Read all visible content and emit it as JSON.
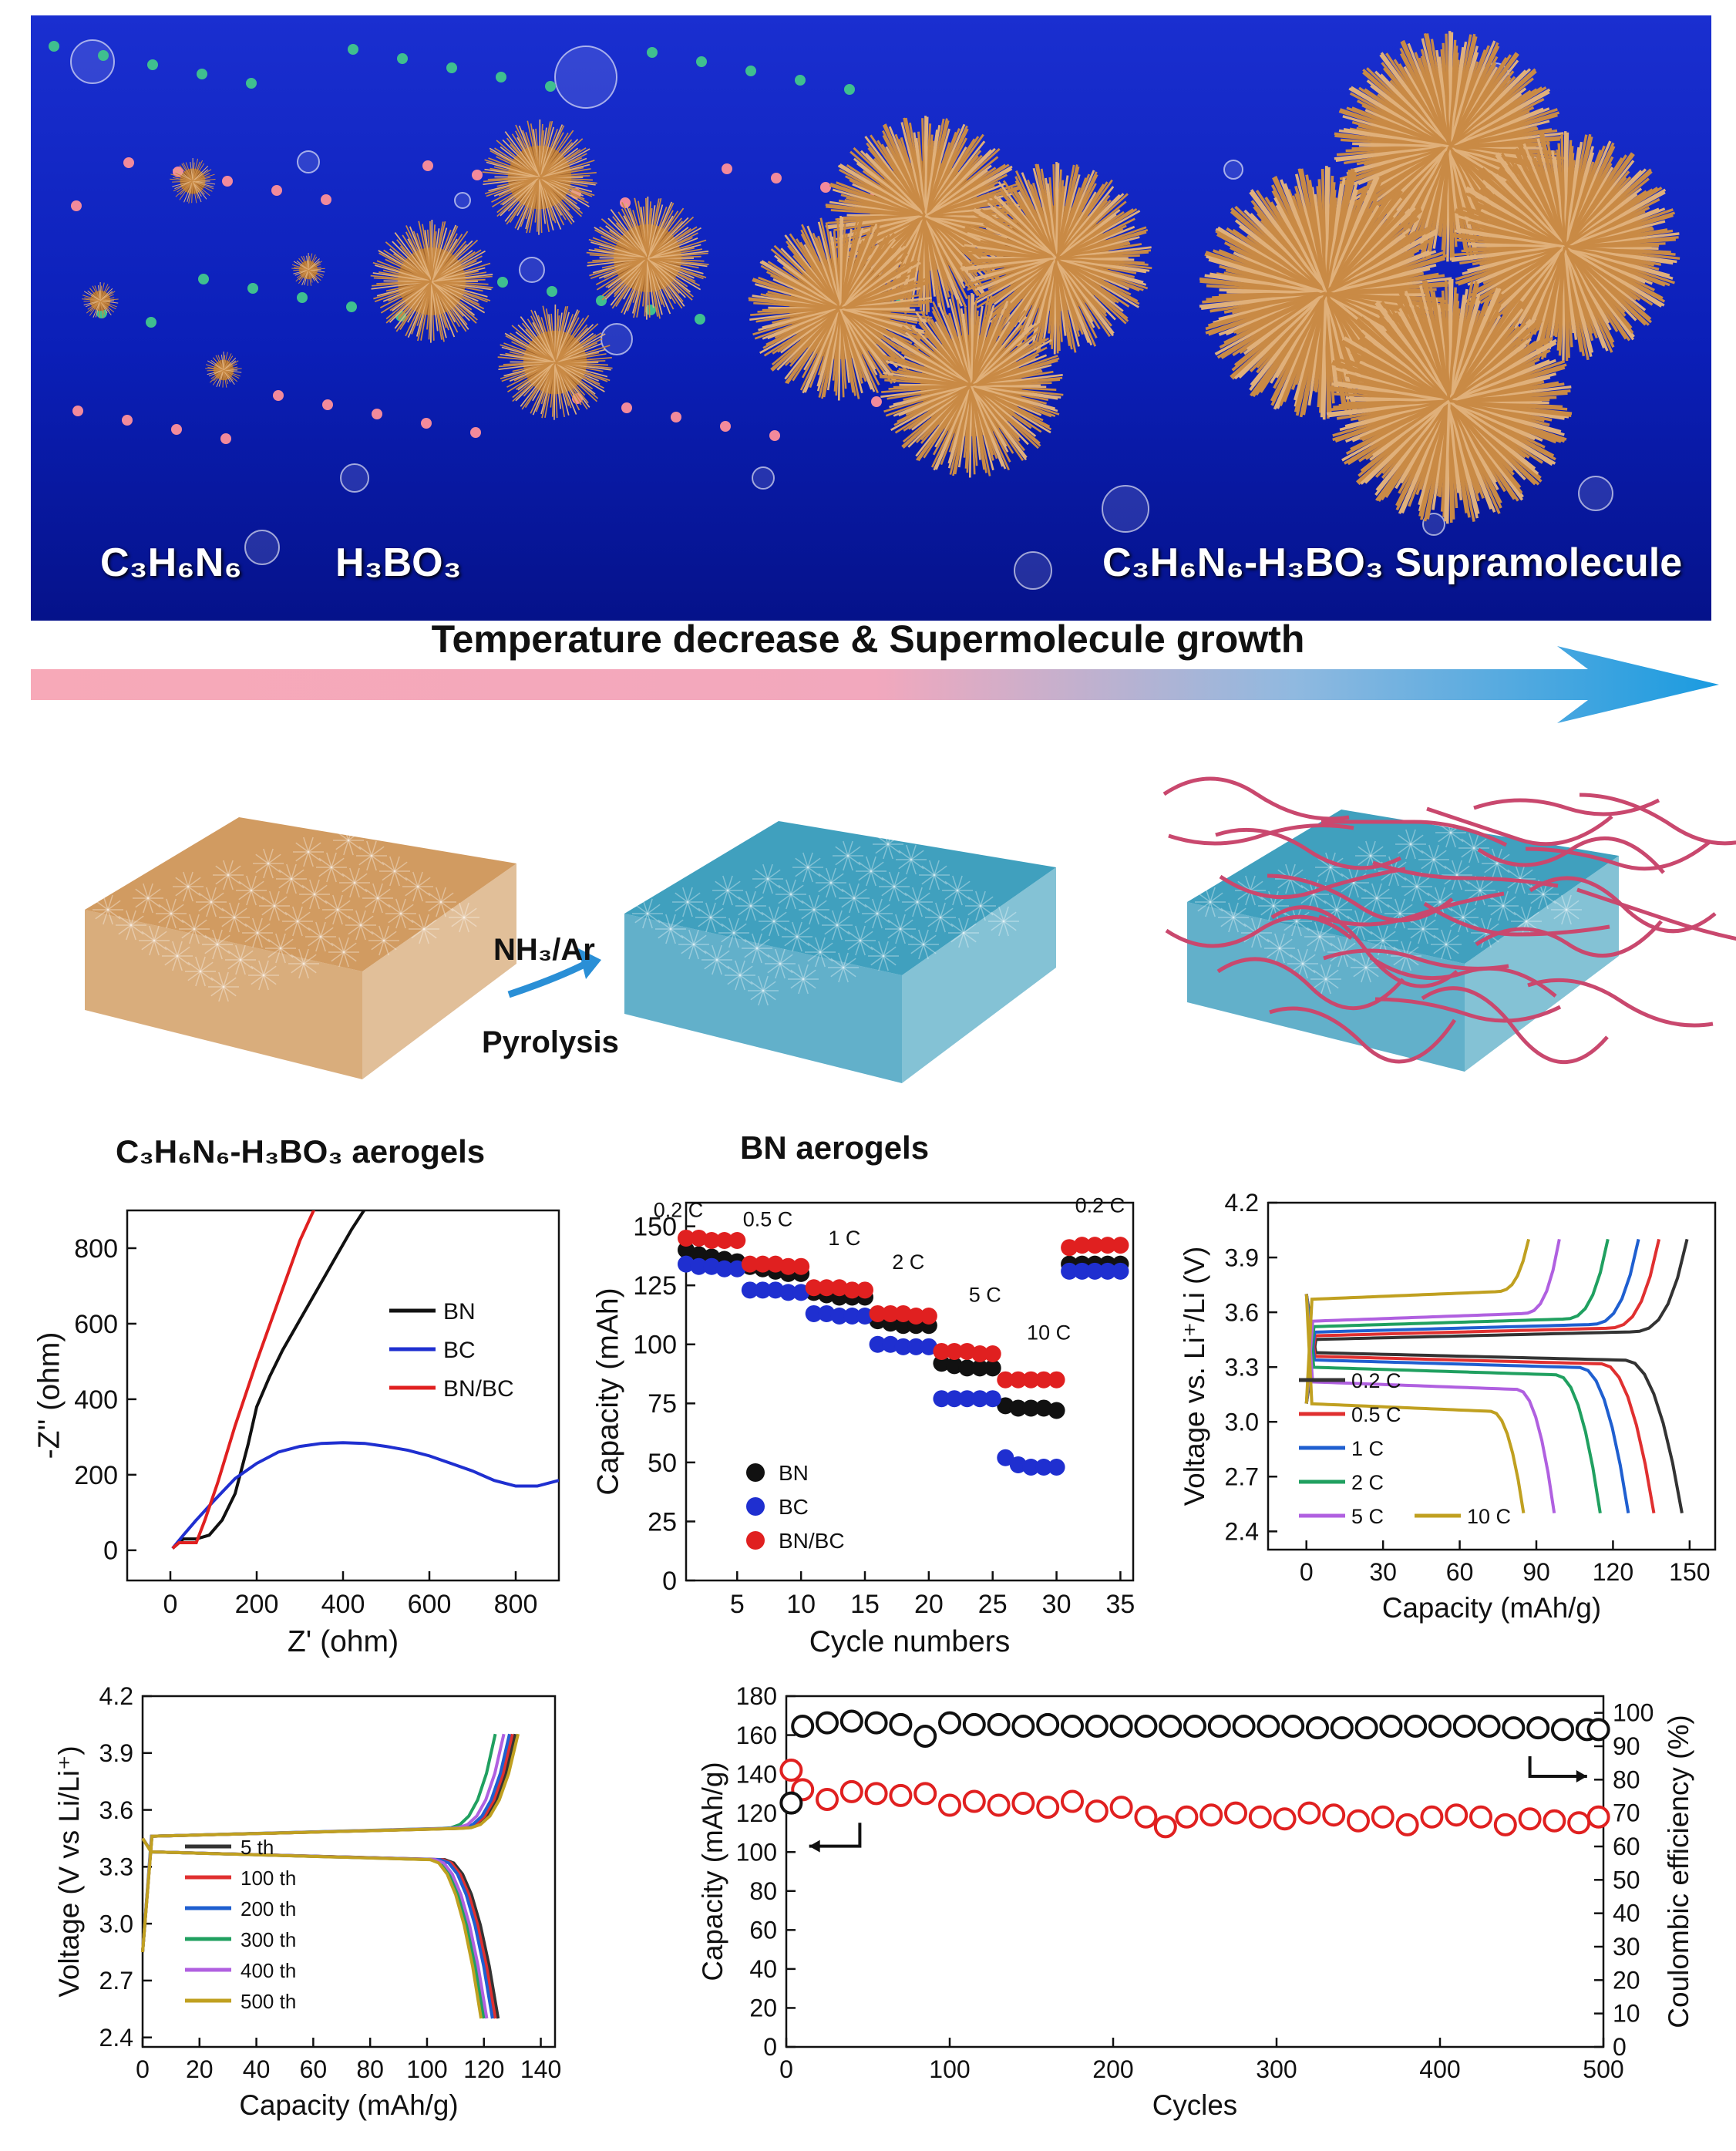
{
  "banner": {
    "label_melamine": "C₃H₆N₆",
    "label_boric": "H₃BO₃",
    "label_supramolecule": "C₃H₆N₆-H₃BO₃ Supramolecule"
  },
  "process_arrow": {
    "title": "Temperature decrease  & Supermolecule growth"
  },
  "aerogels": {
    "precursor_caption": "C₃H₆N₆-H₃BO₃ aerogels",
    "bn_caption": "BN aerogels",
    "step_gas": "NH₃/Ar",
    "step_process": "Pyrolysis"
  },
  "colors": {
    "orange": "#c98a45",
    "teal": "#1f8fb3",
    "fiber": "#c9486e",
    "black": "#111111",
    "red": "#e02020",
    "blue": "#1f2fd0"
  },
  "chart_data": [
    {
      "type": "line",
      "title": "",
      "xlabel": "Z' (ohm)",
      "ylabel": "-Z'' (ohm)",
      "xlim": [
        -100,
        900
      ],
      "ylim": [
        -80,
        900
      ],
      "xticks": [
        "0",
        "200",
        "400",
        "600",
        "800"
      ],
      "yticks": [
        "0",
        "200",
        "400",
        "600",
        "800"
      ],
      "legend": [
        "BN",
        "BC",
        "BN/BC"
      ],
      "series": [
        {
          "name": "BN",
          "color": "#111111",
          "x": [
            5,
            30,
            60,
            90,
            120,
            150,
            180,
            200,
            230,
            260,
            300,
            340,
            380,
            420,
            460
          ],
          "y": [
            5,
            30,
            30,
            40,
            80,
            150,
            280,
            380,
            460,
            530,
            610,
            690,
            770,
            850,
            920
          ]
        },
        {
          "name": "BC",
          "color": "#1f2fd0",
          "x": [
            5,
            30,
            60,
            100,
            150,
            200,
            250,
            300,
            350,
            400,
            450,
            500,
            550,
            600,
            650,
            700,
            750,
            800,
            850,
            900
          ],
          "y": [
            5,
            40,
            80,
            130,
            190,
            230,
            260,
            275,
            283,
            285,
            283,
            275,
            265,
            250,
            230,
            210,
            185,
            170,
            170,
            185
          ]
        },
        {
          "name": "BN/BC",
          "color": "#e02020",
          "x": [
            5,
            20,
            40,
            60,
            80,
            110,
            150,
            200,
            250,
            300,
            340
          ],
          "y": [
            5,
            20,
            20,
            20,
            80,
            180,
            330,
            500,
            660,
            820,
            920
          ]
        }
      ]
    },
    {
      "type": "scatter",
      "title": "",
      "xlabel": "Cycle numbers",
      "ylabel": "Capacity (mAh)",
      "xlim": [
        1,
        36
      ],
      "ylim": [
        0,
        160
      ],
      "xticks": [
        "5",
        "10",
        "15",
        "20",
        "25",
        "30",
        "35"
      ],
      "yticks": [
        "0",
        "25",
        "50",
        "75",
        "100",
        "125",
        "150"
      ],
      "rate_labels": [
        "0.2 C",
        "0.5 C",
        "1 C",
        "2 C",
        "5 C",
        "10 C",
        "0.2 C"
      ],
      "legend": [
        "BN",
        "BC",
        "BN/BC"
      ],
      "series": [
        {
          "name": "BN",
          "color": "#111111",
          "values": [
            140,
            138,
            137,
            136,
            135,
            133,
            132,
            131,
            130,
            130,
            122,
            121,
            120,
            120,
            120,
            110,
            109,
            108,
            108,
            108,
            92,
            91,
            90,
            90,
            90,
            74,
            73,
            73,
            73,
            72,
            134,
            134,
            134,
            134,
            134
          ]
        },
        {
          "name": "BC",
          "color": "#1f2fd0",
          "values": [
            134,
            133,
            133,
            132,
            132,
            123,
            123,
            123,
            122,
            122,
            113,
            113,
            112,
            112,
            112,
            100,
            100,
            99,
            99,
            99,
            77,
            77,
            77,
            77,
            77,
            52,
            49,
            48,
            48,
            48,
            131,
            131,
            131,
            131,
            131
          ]
        },
        {
          "name": "BN/BC",
          "color": "#e02020",
          "values": [
            145,
            145,
            144,
            144,
            144,
            134,
            134,
            134,
            133,
            133,
            124,
            124,
            124,
            123,
            123,
            113,
            113,
            113,
            112,
            112,
            97,
            97,
            97,
            96,
            96,
            85,
            85,
            85,
            85,
            85,
            141,
            142,
            142,
            142,
            142
          ]
        }
      ]
    },
    {
      "type": "line",
      "title": "",
      "xlabel": "Capacity (mAh/g)",
      "ylabel": "Voltage vs. Li⁺/Li (V)",
      "xlim": [
        -15,
        160
      ],
      "ylim": [
        2.3,
        4.2
      ],
      "xticks": [
        "0",
        "30",
        "60",
        "90",
        "120",
        "150"
      ],
      "yticks": [
        "2.4",
        "2.7",
        "3.0",
        "3.3",
        "3.6",
        "3.9",
        "4.2"
      ],
      "legend": [
        "0.2 C",
        "0.5 C",
        "1 C",
        "2 C",
        "5 C",
        "10 C"
      ],
      "series": [
        {
          "name": "0.2 C",
          "color": "#333333",
          "charge_end": 149,
          "discharge_end": 147,
          "plateau_c": 3.45,
          "plateau_d": 3.38
        },
        {
          "name": "0.5 C",
          "color": "#e03030",
          "charge_end": 138,
          "discharge_end": 136,
          "plateau_c": 3.47,
          "plateau_d": 3.36
        },
        {
          "name": "1 C",
          "color": "#1f5fd0",
          "charge_end": 130,
          "discharge_end": 126,
          "plateau_c": 3.49,
          "plateau_d": 3.34
        },
        {
          "name": "2 C",
          "color": "#20a060",
          "charge_end": 118,
          "discharge_end": 115,
          "plateau_c": 3.52,
          "plateau_d": 3.3
        },
        {
          "name": "5 C",
          "color": "#b060e0",
          "charge_end": 99,
          "discharge_end": 97,
          "plateau_c": 3.55,
          "plateau_d": 3.22
        },
        {
          "name": "10 C",
          "color": "#c0a020",
          "charge_end": 87,
          "discharge_end": 85,
          "plateau_c": 3.67,
          "plateau_d": 3.1
        }
      ]
    },
    {
      "type": "line",
      "title": "",
      "xlabel": "Capacity (mAh/g)",
      "ylabel": "Voltage (V vs Li/Li⁺)",
      "xlim": [
        0,
        145
      ],
      "ylim": [
        2.35,
        4.2
      ],
      "xticks": [
        "0",
        "20",
        "40",
        "60",
        "80",
        "100",
        "120",
        "140"
      ],
      "yticks": [
        "2.4",
        "2.7",
        "3.0",
        "3.3",
        "3.6",
        "3.9",
        "4.2"
      ],
      "legend": [
        "5 th",
        "100 th",
        "200 th",
        "300 th",
        "400 th",
        "500 th"
      ],
      "series": [
        {
          "name": "5 th",
          "color": "#333333",
          "charge_end": 131,
          "discharge_end": 125
        },
        {
          "name": "100 th",
          "color": "#e03030",
          "charge_end": 130,
          "discharge_end": 124
        },
        {
          "name": "200 th",
          "color": "#1f5fd0",
          "charge_end": 129,
          "discharge_end": 123
        },
        {
          "name": "300 th",
          "color": "#20a060",
          "charge_end": 124,
          "discharge_end": 120
        },
        {
          "name": "400 th",
          "color": "#b060e0",
          "charge_end": 127,
          "discharge_end": 121
        },
        {
          "name": "500 th",
          "color": "#c0a020",
          "charge_end": 132,
          "discharge_end": 119
        }
      ]
    },
    {
      "type": "scatter",
      "title": "",
      "xlabel": "Cycles",
      "ylabel": "Capacity (mAh/g)",
      "y2label": "Coulombic efficiency (%)",
      "xlim": [
        0,
        500
      ],
      "ylim": [
        0,
        180
      ],
      "y2lim": [
        0,
        105
      ],
      "xticks": [
        "0",
        "100",
        "200",
        "300",
        "400",
        "500"
      ],
      "yticks": [
        "0",
        "20",
        "40",
        "60",
        "80",
        "100",
        "120",
        "140",
        "160",
        "180"
      ],
      "y2ticks": [
        "0",
        "10",
        "20",
        "30",
        "40",
        "50",
        "60",
        "70",
        "80",
        "90",
        "100"
      ],
      "series": [
        {
          "name": "Capacity",
          "color": "#e02020",
          "x": [
            3,
            10,
            25,
            40,
            55,
            70,
            85,
            100,
            115,
            130,
            145,
            160,
            175,
            190,
            205,
            220,
            232,
            245,
            260,
            275,
            290,
            305,
            320,
            335,
            350,
            365,
            380,
            395,
            410,
            425,
            440,
            455,
            470,
            485,
            497
          ],
          "values": [
            142,
            132,
            127,
            131,
            130,
            129,
            130,
            124,
            126,
            124,
            125,
            123,
            126,
            121,
            123,
            118,
            113,
            118,
            119,
            120,
            118,
            117,
            120,
            119,
            116,
            118,
            114,
            118,
            119,
            118,
            114,
            117,
            116,
            115,
            118
          ]
        },
        {
          "name": "Coulombic efficiency",
          "color": "#111111",
          "x": [
            3,
            10,
            25,
            40,
            55,
            70,
            85,
            100,
            115,
            130,
            145,
            160,
            175,
            190,
            205,
            220,
            235,
            250,
            265,
            280,
            295,
            310,
            325,
            340,
            355,
            370,
            385,
            400,
            415,
            430,
            445,
            460,
            475,
            490,
            497
          ],
          "values": [
            73,
            96,
            97,
            97.5,
            97,
            96.5,
            93,
            97,
            96.5,
            96.5,
            96,
            96.5,
            96,
            96,
            96,
            96,
            96,
            96,
            96,
            96,
            96,
            96,
            95.5,
            95.5,
            95.5,
            96,
            96,
            96,
            96,
            96,
            95.5,
            95.5,
            95,
            95,
            95
          ]
        }
      ]
    }
  ]
}
